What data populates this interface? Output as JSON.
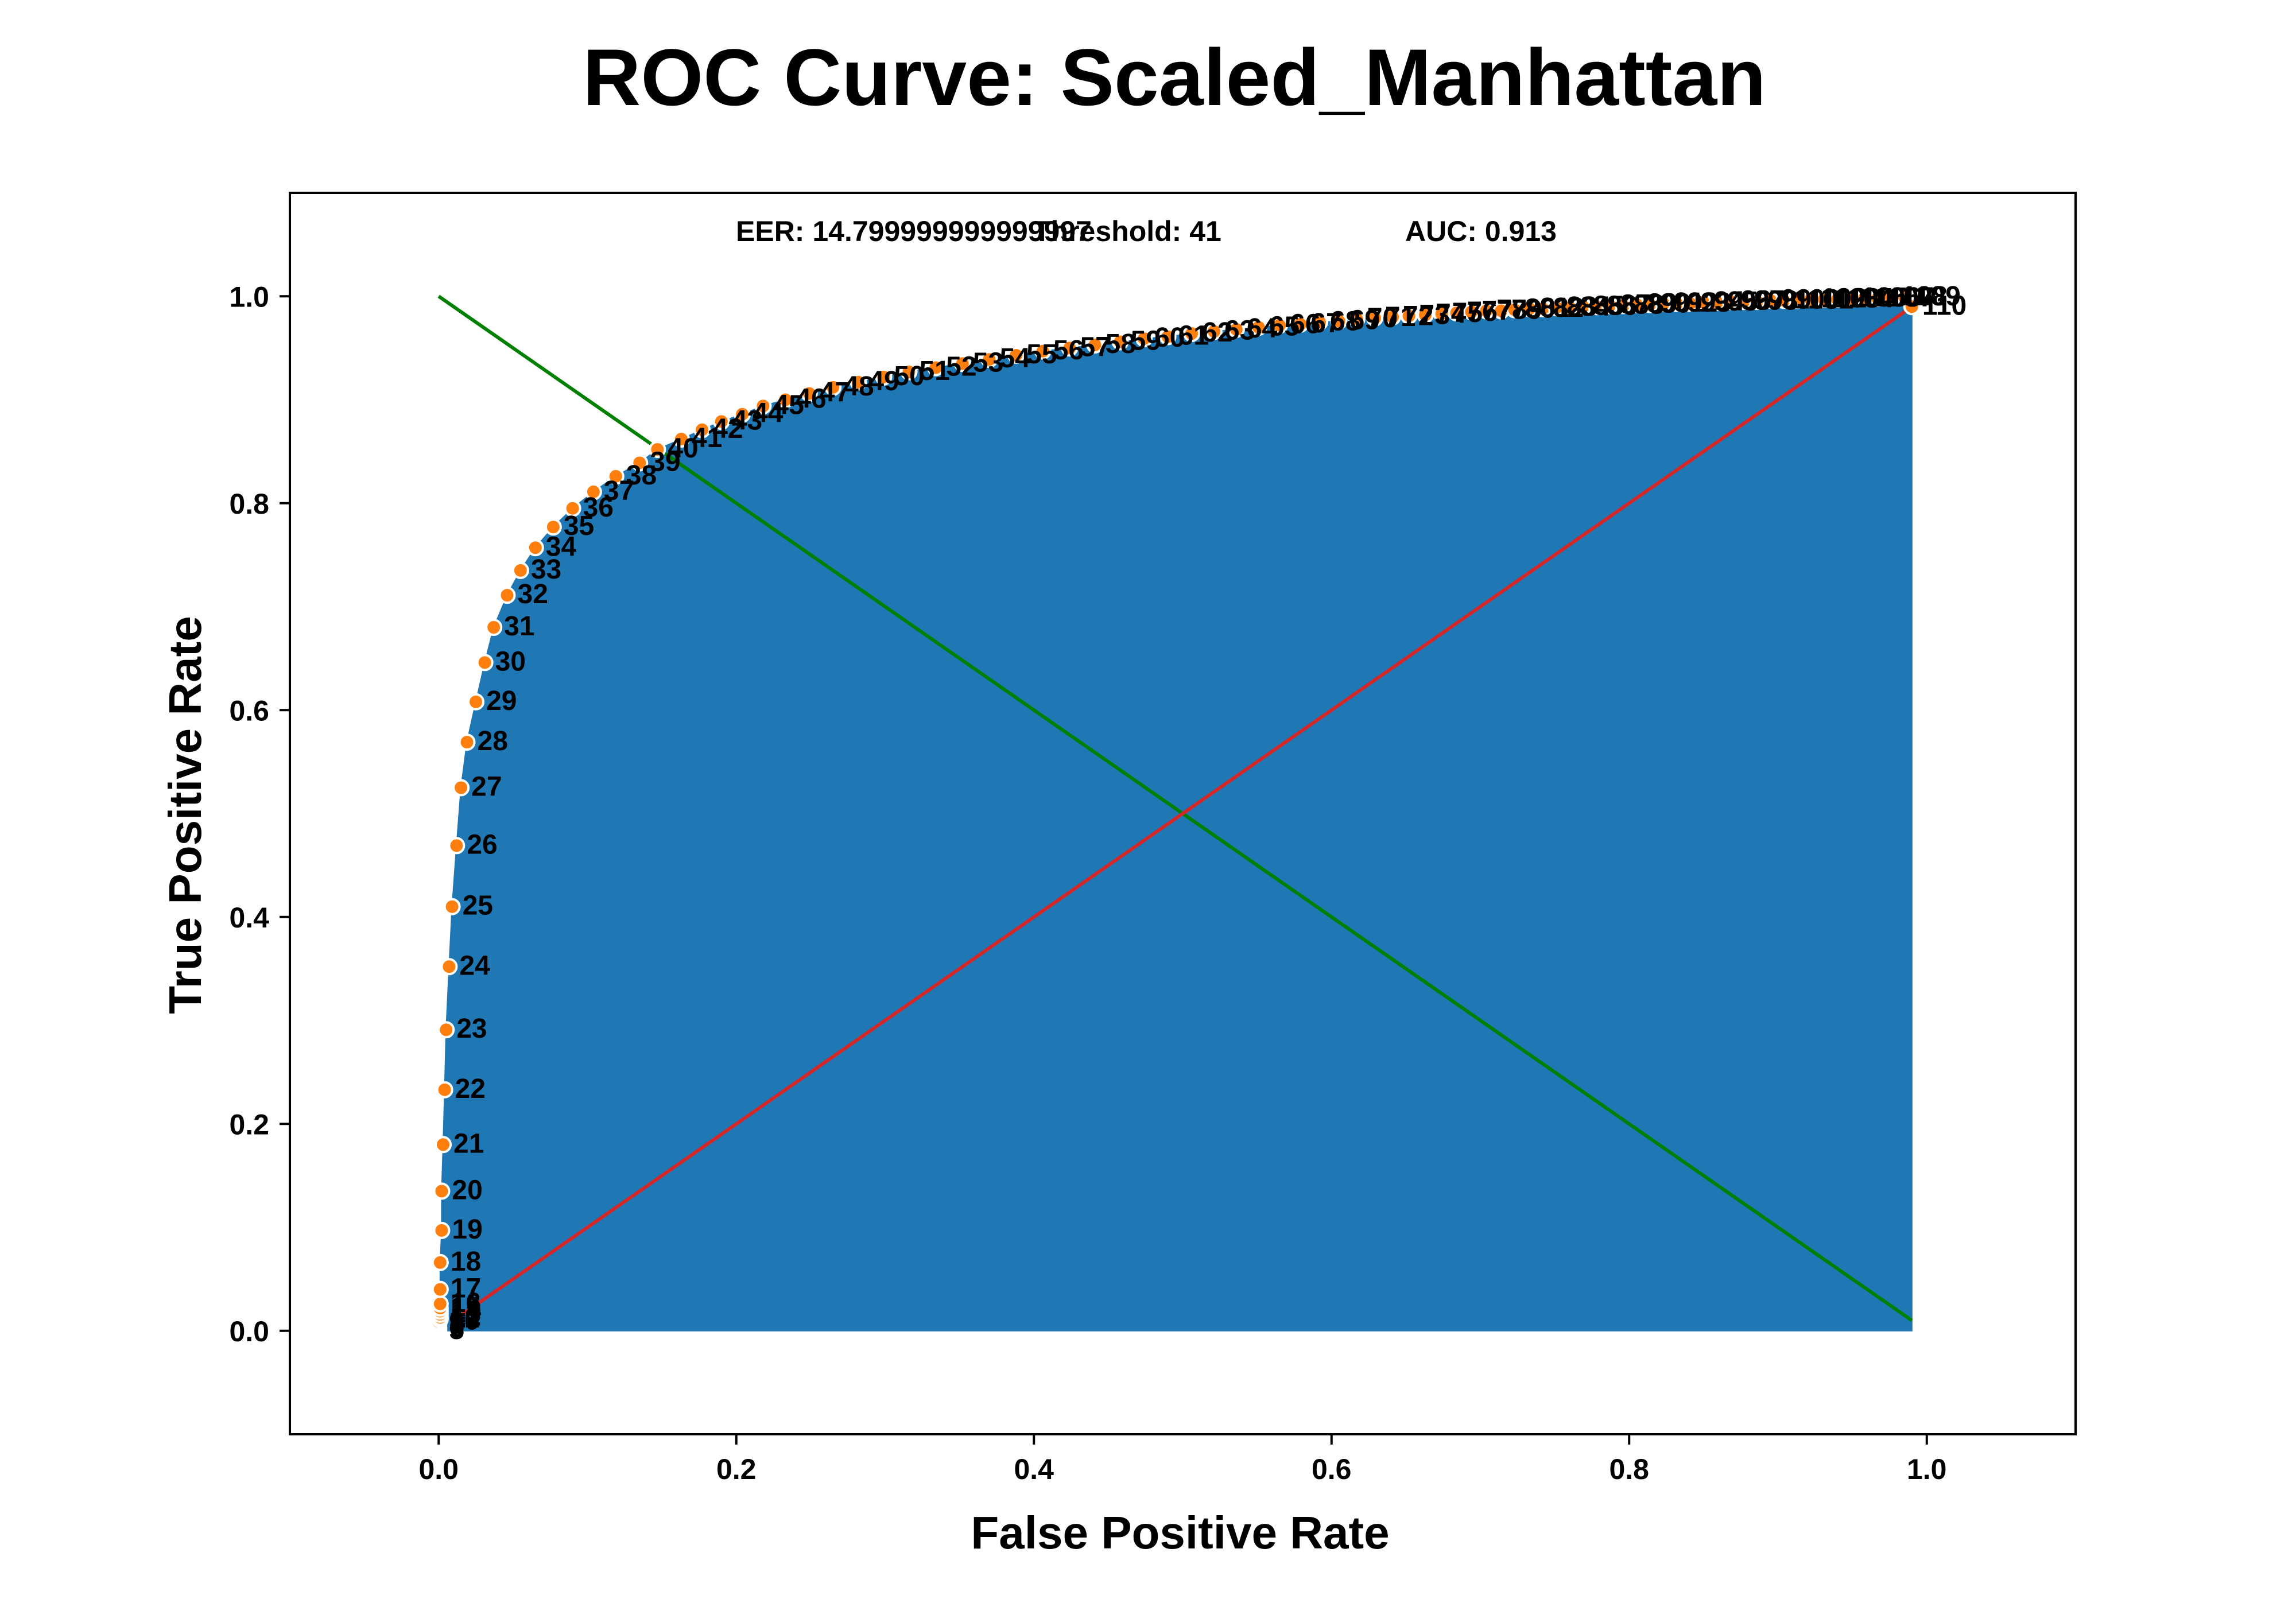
{
  "chart_data": {
    "type": "line",
    "title": "ROC Curve: Scaled_Manhattan",
    "xlabel": "False Positive Rate",
    "ylabel": "True Positive Rate",
    "xlim": [
      -0.1,
      1.1
    ],
    "ylim": [
      -0.1,
      1.1
    ],
    "xticks": [
      "0.0",
      "0.2",
      "0.4",
      "0.6",
      "0.8",
      "1.0"
    ],
    "yticks": [
      "0.0",
      "0.2",
      "0.4",
      "0.6",
      "0.8",
      "1.0"
    ],
    "grid": false,
    "annotations": {
      "eer": "EER: 14.799999999999997",
      "threshold": "Threshold: 41",
      "auc": "AUC: 0.913"
    },
    "colors": {
      "fill": "#1f77b4",
      "points": "#ff7f0e",
      "point_edge": "#ffffff",
      "diagonal": "#d62728",
      "eer_line": "#008000",
      "text": "#000000"
    },
    "eer_line": {
      "x": [
        0.0,
        0.99
      ],
      "y": [
        1.0,
        0.01
      ]
    },
    "diagonal": {
      "x": [
        0.01,
        0.99
      ],
      "y": [
        0.01,
        0.99
      ]
    },
    "fill_region": {
      "x": [
        0.0,
        0.99
      ],
      "y_bottom": 0.0,
      "y_top_at_end": 0.99
    },
    "roc_points": [
      {
        "label": "5",
        "x": 0.0,
        "y": 0.0
      },
      {
        "label": "6",
        "x": 0.0,
        "y": 0.002
      },
      {
        "label": "7",
        "x": 0.0,
        "y": 0.003
      },
      {
        "label": "8",
        "x": 0.0,
        "y": 0.005
      },
      {
        "label": "9",
        "x": 0.0,
        "y": 0.007
      },
      {
        "label": "10",
        "x": 0.0,
        "y": 0.009
      },
      {
        "label": "11",
        "x": 0.001,
        "y": 0.011
      },
      {
        "label": "12",
        "x": 0.001,
        "y": 0.013
      },
      {
        "label": "13",
        "x": 0.001,
        "y": 0.016
      },
      {
        "label": "14",
        "x": 0.001,
        "y": 0.019
      },
      {
        "label": "15",
        "x": 0.001,
        "y": 0.022
      },
      {
        "label": "16",
        "x": 0.001,
        "y": 0.026
      },
      {
        "label": "17",
        "x": 0.001,
        "y": 0.04
      },
      {
        "label": "18",
        "x": 0.001,
        "y": 0.066
      },
      {
        "label": "19",
        "x": 0.002,
        "y": 0.097
      },
      {
        "label": "20",
        "x": 0.002,
        "y": 0.135
      },
      {
        "label": "21",
        "x": 0.003,
        "y": 0.18
      },
      {
        "label": "22",
        "x": 0.004,
        "y": 0.233
      },
      {
        "label": "23",
        "x": 0.005,
        "y": 0.291
      },
      {
        "label": "24",
        "x": 0.007,
        "y": 0.352
      },
      {
        "label": "25",
        "x": 0.009,
        "y": 0.41
      },
      {
        "label": "26",
        "x": 0.012,
        "y": 0.469
      },
      {
        "label": "27",
        "x": 0.015,
        "y": 0.525
      },
      {
        "label": "28",
        "x": 0.019,
        "y": 0.569
      },
      {
        "label": "29",
        "x": 0.025,
        "y": 0.608
      },
      {
        "label": "30",
        "x": 0.031,
        "y": 0.646
      },
      {
        "label": "31",
        "x": 0.037,
        "y": 0.68
      },
      {
        "label": "32",
        "x": 0.046,
        "y": 0.711
      },
      {
        "label": "33",
        "x": 0.055,
        "y": 0.735
      },
      {
        "label": "34",
        "x": 0.065,
        "y": 0.757
      },
      {
        "label": "35",
        "x": 0.077,
        "y": 0.777
      },
      {
        "label": "36",
        "x": 0.09,
        "y": 0.795
      },
      {
        "label": "37",
        "x": 0.104,
        "y": 0.811
      },
      {
        "label": "38",
        "x": 0.119,
        "y": 0.826
      },
      {
        "label": "39",
        "x": 0.135,
        "y": 0.839
      },
      {
        "label": "40",
        "x": 0.147,
        "y": 0.852
      },
      {
        "label": "41",
        "x": 0.163,
        "y": 0.862
      },
      {
        "label": "42",
        "x": 0.177,
        "y": 0.871
      },
      {
        "label": "43",
        "x": 0.19,
        "y": 0.879
      },
      {
        "label": "44",
        "x": 0.204,
        "y": 0.886
      },
      {
        "label": "45",
        "x": 0.218,
        "y": 0.894
      },
      {
        "label": "46",
        "x": 0.233,
        "y": 0.9
      },
      {
        "label": "47",
        "x": 0.249,
        "y": 0.906
      },
      {
        "label": "48",
        "x": 0.265,
        "y": 0.912
      },
      {
        "label": "49",
        "x": 0.282,
        "y": 0.917
      },
      {
        "label": "50",
        "x": 0.299,
        "y": 0.922
      },
      {
        "label": "51",
        "x": 0.316,
        "y": 0.927
      },
      {
        "label": "52",
        "x": 0.334,
        "y": 0.931
      },
      {
        "label": "53",
        "x": 0.352,
        "y": 0.935
      },
      {
        "label": "54",
        "x": 0.37,
        "y": 0.939
      },
      {
        "label": "55",
        "x": 0.388,
        "y": 0.943
      },
      {
        "label": "56",
        "x": 0.406,
        "y": 0.947
      },
      {
        "label": "57",
        "x": 0.424,
        "y": 0.95
      },
      {
        "label": "58",
        "x": 0.441,
        "y": 0.953
      },
      {
        "label": "59",
        "x": 0.458,
        "y": 0.956
      },
      {
        "label": "60",
        "x": 0.474,
        "y": 0.959
      },
      {
        "label": "61",
        "x": 0.49,
        "y": 0.961
      },
      {
        "label": "62",
        "x": 0.506,
        "y": 0.964
      },
      {
        "label": "63",
        "x": 0.521,
        "y": 0.966
      },
      {
        "label": "64",
        "x": 0.536,
        "y": 0.968
      },
      {
        "label": "65",
        "x": 0.551,
        "y": 0.97
      },
      {
        "label": "66",
        "x": 0.565,
        "y": 0.972
      },
      {
        "label": "67",
        "x": 0.579,
        "y": 0.973
      },
      {
        "label": "68",
        "x": 0.592,
        "y": 0.975
      },
      {
        "label": "69",
        "x": 0.605,
        "y": 0.976
      },
      {
        "label": "70",
        "x": 0.617,
        "y": 0.978
      },
      {
        "label": "71",
        "x": 0.629,
        "y": 0.979
      },
      {
        "label": "72",
        "x": 0.641,
        "y": 0.98
      },
      {
        "label": "73",
        "x": 0.652,
        "y": 0.981
      },
      {
        "label": "74",
        "x": 0.663,
        "y": 0.982
      },
      {
        "label": "75",
        "x": 0.674,
        "y": 0.983
      },
      {
        "label": "76",
        "x": 0.684,
        "y": 0.984
      },
      {
        "label": "77",
        "x": 0.694,
        "y": 0.985
      },
      {
        "label": "78",
        "x": 0.704,
        "y": 0.986
      },
      {
        "label": "79",
        "x": 0.714,
        "y": 0.986
      },
      {
        "label": "80",
        "x": 0.723,
        "y": 0.987
      },
      {
        "label": "81",
        "x": 0.733,
        "y": 0.988
      },
      {
        "label": "82",
        "x": 0.742,
        "y": 0.988
      },
      {
        "label": "83",
        "x": 0.751,
        "y": 0.989
      },
      {
        "label": "84",
        "x": 0.76,
        "y": 0.989
      },
      {
        "label": "85",
        "x": 0.769,
        "y": 0.99
      },
      {
        "label": "86",
        "x": 0.778,
        "y": 0.99
      },
      {
        "label": "87",
        "x": 0.787,
        "y": 0.991
      },
      {
        "label": "88",
        "x": 0.796,
        "y": 0.991
      },
      {
        "label": "89",
        "x": 0.805,
        "y": 0.992
      },
      {
        "label": "90",
        "x": 0.814,
        "y": 0.992
      },
      {
        "label": "91",
        "x": 0.823,
        "y": 0.993
      },
      {
        "label": "92",
        "x": 0.832,
        "y": 0.993
      },
      {
        "label": "93",
        "x": 0.841,
        "y": 0.993
      },
      {
        "label": "94",
        "x": 0.85,
        "y": 0.994
      },
      {
        "label": "95",
        "x": 0.859,
        "y": 0.994
      },
      {
        "label": "96",
        "x": 0.868,
        "y": 0.995
      },
      {
        "label": "97",
        "x": 0.877,
        "y": 0.995
      },
      {
        "label": "98",
        "x": 0.886,
        "y": 0.995
      },
      {
        "label": "99",
        "x": 0.895,
        "y": 0.996
      },
      {
        "label": "100",
        "x": 0.904,
        "y": 0.996
      },
      {
        "label": "101",
        "x": 0.913,
        "y": 0.996
      },
      {
        "label": "102",
        "x": 0.922,
        "y": 0.997
      },
      {
        "label": "103",
        "x": 0.931,
        "y": 0.997
      },
      {
        "label": "104",
        "x": 0.94,
        "y": 0.997
      },
      {
        "label": "105",
        "x": 0.949,
        "y": 0.998
      },
      {
        "label": "106",
        "x": 0.958,
        "y": 0.998
      },
      {
        "label": "107",
        "x": 0.967,
        "y": 0.998
      },
      {
        "label": "108",
        "x": 0.976,
        "y": 0.999
      },
      {
        "label": "109",
        "x": 0.985,
        "y": 0.999
      },
      {
        "label": "110",
        "x": 0.99,
        "y": 0.99
      }
    ]
  }
}
